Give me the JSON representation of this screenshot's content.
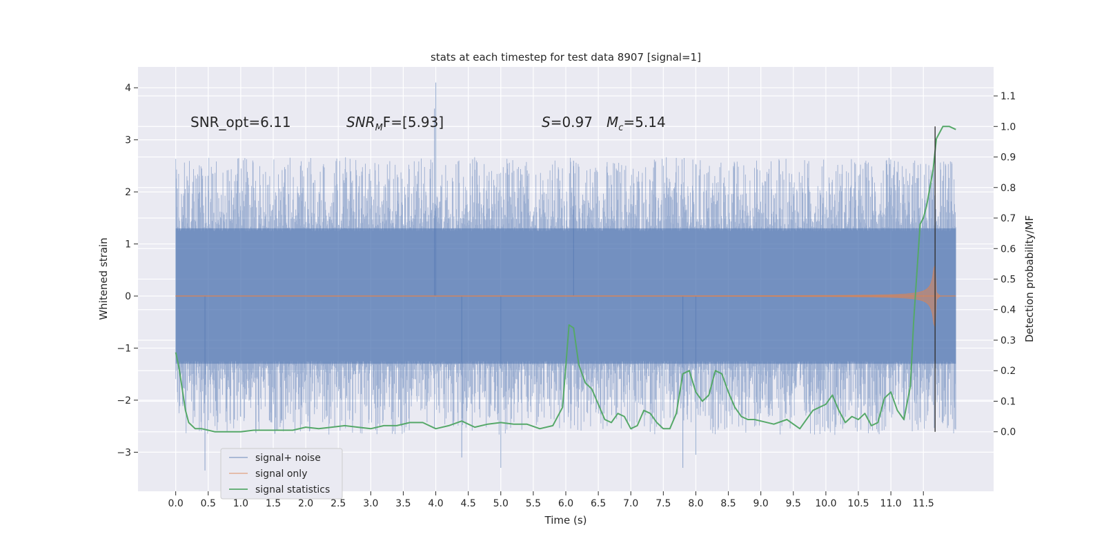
{
  "chart_data": {
    "type": "line",
    "title": "stats at each timestep for test data 8907 [signal=1]",
    "xlabel": "Time (s)",
    "ylabel": "Whitened strain",
    "ylabel_right": "Detection probability/MF",
    "xlim": [
      -0.58,
      12.58
    ],
    "ylim": [
      -3.75,
      4.4
    ],
    "ylim_right": [
      -0.195,
      1.195
    ],
    "x_ticks": [
      "0.0",
      "0.5",
      "1.0",
      "1.5",
      "2.0",
      "2.5",
      "3.0",
      "3.5",
      "4.0",
      "4.5",
      "5.0",
      "5.5",
      "6.0",
      "6.5",
      "7.0",
      "7.5",
      "8.0",
      "8.5",
      "9.0",
      "9.5",
      "10.0",
      "10.5",
      "11.0",
      "11.5"
    ],
    "y_ticks": [
      "−3",
      "−2",
      "−1",
      "0",
      "1",
      "2",
      "3",
      "4"
    ],
    "y_ticks_right": [
      "0.0",
      "0.1",
      "0.2",
      "0.3",
      "0.4",
      "0.5",
      "0.6",
      "0.7",
      "0.8",
      "0.9",
      "1.0",
      "1.1"
    ],
    "grid": true,
    "legend_position": "lower-left",
    "annotations": {
      "snr_opt": "SNR_opt=6.11",
      "snr_mf_prefix": "SNR",
      "snr_mf_sub": "M",
      "snr_mf_suffix": "F=[5.93]",
      "s_name": "S",
      "s_value": "=0.97",
      "mc_name": "M",
      "mc_sub": "c",
      "mc_value": "=5.14"
    },
    "marker_line_x": 11.68,
    "series": [
      {
        "name": "signal+ noise",
        "color": "#4c72b0",
        "kind": "noisy-band",
        "x_range": [
          0.0,
          12.0
        ],
        "core_band": [
          -1.3,
          1.3
        ],
        "typical_extremes": [
          -2.6,
          2.6
        ],
        "max": 4.1,
        "min": -3.35
      },
      {
        "name": "signal only",
        "color": "#dd8452",
        "kind": "chirp-envelope",
        "x_range": [
          0.0,
          12.0
        ],
        "peak_time": 11.68,
        "peak_amplitude": 0.6
      },
      {
        "name": "signal statistics",
        "color": "#55a868",
        "kind": "line",
        "axis": "right",
        "x": [
          0.0,
          0.05,
          0.1,
          0.15,
          0.2,
          0.3,
          0.4,
          0.5,
          0.6,
          0.8,
          1.0,
          1.2,
          1.4,
          1.6,
          1.8,
          2.0,
          2.2,
          2.4,
          2.6,
          2.8,
          3.0,
          3.2,
          3.4,
          3.6,
          3.8,
          4.0,
          4.2,
          4.4,
          4.6,
          4.8,
          5.0,
          5.2,
          5.4,
          5.6,
          5.8,
          5.95,
          6.05,
          6.12,
          6.2,
          6.3,
          6.4,
          6.5,
          6.6,
          6.7,
          6.8,
          6.9,
          7.0,
          7.1,
          7.2,
          7.3,
          7.4,
          7.5,
          7.6,
          7.7,
          7.8,
          7.9,
          8.0,
          8.1,
          8.2,
          8.3,
          8.4,
          8.5,
          8.6,
          8.7,
          8.8,
          8.9,
          9.0,
          9.2,
          9.4,
          9.6,
          9.8,
          10.0,
          10.1,
          10.2,
          10.3,
          10.4,
          10.5,
          10.6,
          10.7,
          10.8,
          10.9,
          11.0,
          11.1,
          11.2,
          11.3,
          11.35,
          11.4,
          11.45,
          11.5,
          11.55,
          11.6,
          11.65,
          11.7,
          11.75,
          11.8,
          11.85,
          11.9,
          12.0
        ],
        "y": [
          0.26,
          0.21,
          0.14,
          0.07,
          0.03,
          0.01,
          0.01,
          0.005,
          0.0,
          0.0,
          0.0,
          0.005,
          0.005,
          0.005,
          0.005,
          0.015,
          0.01,
          0.015,
          0.02,
          0.015,
          0.01,
          0.02,
          0.02,
          0.03,
          0.03,
          0.01,
          0.02,
          0.035,
          0.015,
          0.025,
          0.03,
          0.025,
          0.025,
          0.01,
          0.02,
          0.08,
          0.35,
          0.34,
          0.22,
          0.16,
          0.14,
          0.09,
          0.04,
          0.03,
          0.06,
          0.05,
          0.01,
          0.02,
          0.07,
          0.06,
          0.03,
          0.01,
          0.01,
          0.06,
          0.19,
          0.2,
          0.13,
          0.1,
          0.12,
          0.2,
          0.19,
          0.13,
          0.08,
          0.05,
          0.04,
          0.04,
          0.035,
          0.025,
          0.04,
          0.01,
          0.07,
          0.09,
          0.12,
          0.07,
          0.03,
          0.05,
          0.04,
          0.06,
          0.02,
          0.03,
          0.11,
          0.13,
          0.07,
          0.04,
          0.15,
          0.36,
          0.52,
          0.68,
          0.7,
          0.74,
          0.8,
          0.86,
          0.96,
          0.98,
          1.0,
          1.0,
          1.0,
          0.99
        ]
      }
    ]
  }
}
